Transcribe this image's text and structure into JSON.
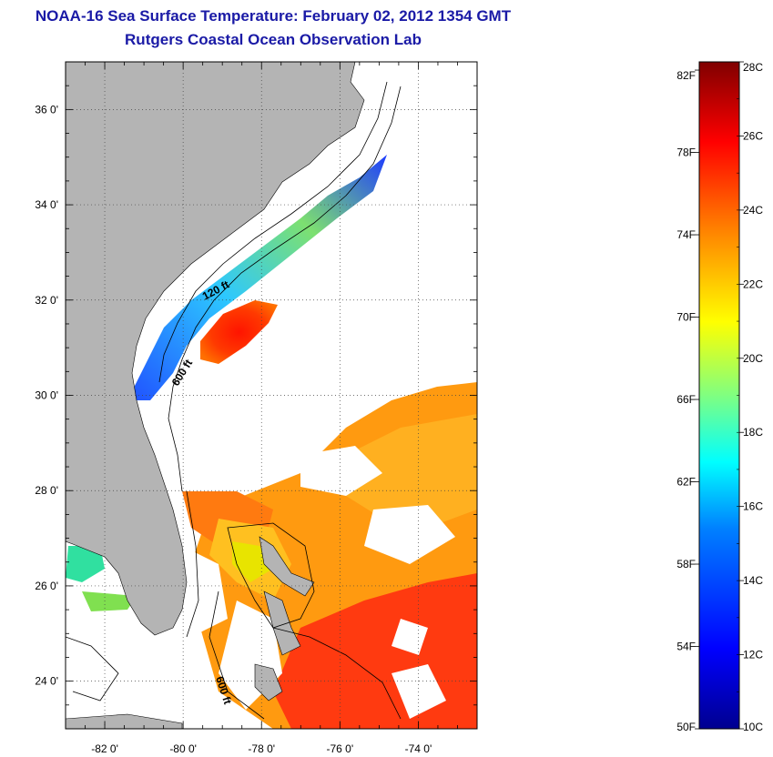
{
  "header": {
    "title": "NOAA-16 Sea Surface Temperature:  February 02, 2012 1354 GMT",
    "subtitle": "Rutgers Coastal Ocean Observation Lab"
  },
  "map": {
    "lon_ticks": [
      "-82 0'",
      "-80 0'",
      "-78 0'",
      "-76 0'",
      "-74 0'"
    ],
    "lat_ticks": [
      "36 0'",
      "34 0'",
      "32 0'",
      "30 0'",
      "28 0'",
      "26 0'",
      "24 0'"
    ],
    "lon_range": [
      -83,
      -72.5
    ],
    "lat_range": [
      23,
      37
    ],
    "grid": "dotted",
    "contour_labels": [
      "120 ft",
      "600 ft",
      "600 ft"
    ],
    "land_color": "#b4b4b4"
  },
  "colorbar": {
    "fahrenheit_labels": [
      "82F",
      "78F",
      "74F",
      "70F",
      "66F",
      "62F",
      "58F",
      "54F",
      "50F"
    ],
    "celsius_labels": [
      "28C",
      "26C",
      "24C",
      "22C",
      "20C",
      "18C",
      "16C",
      "14C",
      "12C",
      "10C"
    ],
    "range_celsius": [
      10,
      28
    ],
    "colors": [
      "#00008f",
      "#0000ff",
      "#0080ff",
      "#00ffff",
      "#80ff80",
      "#ffff00",
      "#ff8000",
      "#ff0000",
      "#800000"
    ]
  }
}
